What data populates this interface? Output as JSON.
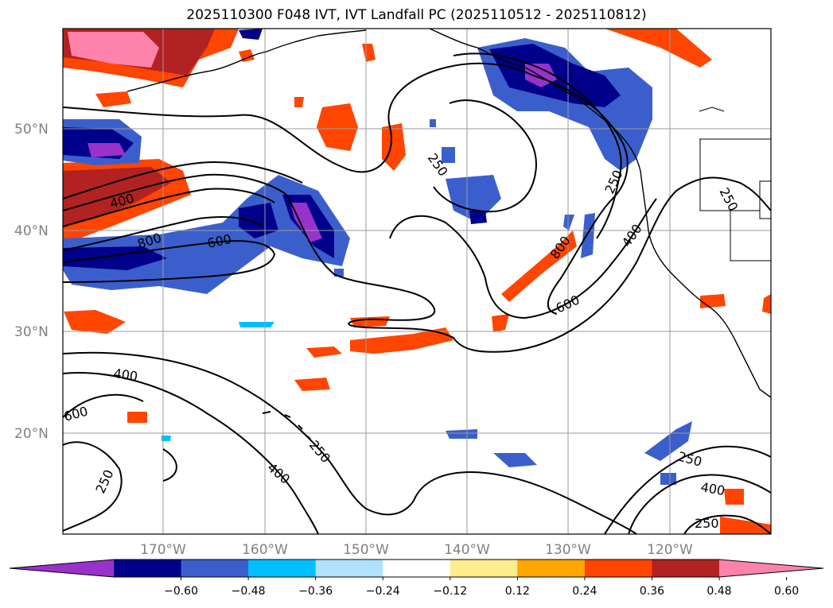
{
  "title": "2025110300 F048 IVT, IVT Landfall PC (2025110512 - 2025110812)",
  "lat_labels": [
    "50°N",
    "40°N",
    "30°N",
    "20°N"
  ],
  "lon_labels": [
    "170°W",
    "160°W",
    "150°W",
    "140°W",
    "130°W",
    "120°W"
  ],
  "colorbar": {
    "colors": [
      "#9932cc",
      "#00008b",
      "#3a5fcd",
      "#00bfff",
      "#b0e2ff",
      "#ffffff",
      "#ffec8b",
      "#ffa500",
      "#ff4500",
      "#b22222",
      "#ff82ab"
    ],
    "tick_labels": [
      "−0.60",
      "−0.48",
      "−0.36",
      "−0.24",
      "−0.12",
      "0.12",
      "0.24",
      "0.36",
      "0.48",
      "0.60"
    ]
  },
  "contour_labels": [
    "400",
    "800",
    "600",
    "250",
    "250",
    "800",
    "400",
    "600",
    "250",
    "400",
    "600",
    "250",
    "250",
    "400",
    "250",
    "400",
    "250"
  ]
}
